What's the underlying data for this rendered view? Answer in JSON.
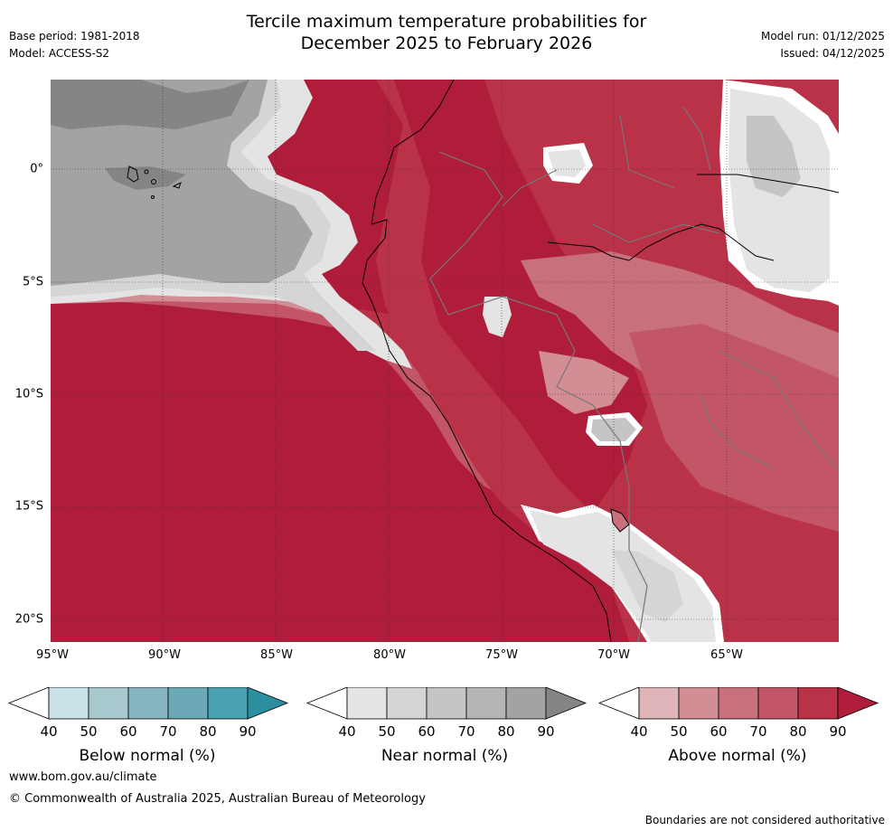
{
  "header": {
    "title_line1": "Tercile maximum temperature probabilities for",
    "title_line2": "December 2025 to February 2026",
    "base_period": "Base period: 1981-2018",
    "model": "Model: ACCESS-S2",
    "model_run": "Model run: 01/12/2025",
    "issued": "Issued: 04/12/2025"
  },
  "map": {
    "x_ticks": [
      "95°W",
      "90°W",
      "85°W",
      "80°W",
      "75°W",
      "70°W",
      "65°W"
    ],
    "y_ticks": [
      "0°",
      "5°S",
      "10°S",
      "15°S",
      "20°S"
    ]
  },
  "colorbars": [
    {
      "title": "Below normal (%)",
      "labels": [
        "40",
        "50",
        "60",
        "70",
        "80",
        "90"
      ],
      "colors": [
        "#ffffff",
        "#c8e2e7",
        "#a7c8cd",
        "#88b6c0",
        "#6aa9b5",
        "#47a1b0",
        "#2c8fa0"
      ]
    },
    {
      "title": "Near normal (%)",
      "labels": [
        "40",
        "50",
        "60",
        "70",
        "80",
        "90"
      ],
      "colors": [
        "#ffffff",
        "#e4e4e4",
        "#d5d5d5",
        "#c5c5c5",
        "#b5b5b5",
        "#a3a3a3",
        "#858585"
      ]
    },
    {
      "title": "Above normal (%)",
      "labels": [
        "40",
        "50",
        "60",
        "70",
        "80",
        "90"
      ],
      "colors": [
        "#ffffff",
        "#e0b5ba",
        "#d38d95",
        "#c8707b",
        "#c25666",
        "#b93248",
        "#b01d3a"
      ]
    }
  ],
  "footer": {
    "website": "www.bom.gov.au/climate",
    "copyright": "© Commonwealth of Australia 2025, Australian Bureau of Meteorology",
    "disclaimer": "Boundaries are not considered authoritative"
  }
}
